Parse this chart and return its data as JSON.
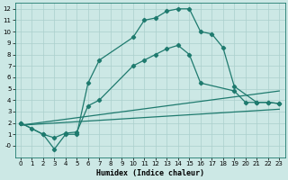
{
  "xlabel": "Humidex (Indice chaleur)",
  "background_color": "#cce8e5",
  "grid_color": "#aacfcc",
  "line_color": "#1e7a6e",
  "xlim": [
    -0.5,
    23.5
  ],
  "ylim": [
    -1.0,
    12.5
  ],
  "xticks": [
    0,
    1,
    2,
    3,
    4,
    5,
    6,
    7,
    8,
    9,
    10,
    11,
    12,
    13,
    14,
    15,
    16,
    17,
    18,
    19,
    20,
    21,
    22,
    23
  ],
  "yticks": [
    0,
    1,
    2,
    3,
    4,
    5,
    6,
    7,
    8,
    9,
    10,
    11,
    12
  ],
  "ytick_labels": [
    "-0",
    "1",
    "2",
    "3",
    "4",
    "5",
    "6",
    "7",
    "8",
    "9",
    "10",
    "11",
    "12"
  ],
  "series_marked": [
    {
      "x": [
        0,
        1,
        2,
        3,
        4,
        5,
        6,
        7,
        10,
        11,
        12,
        13,
        14,
        15,
        16,
        17,
        18,
        19,
        21,
        22,
        23
      ],
      "y": [
        2,
        1.5,
        1.0,
        -0.3,
        1.0,
        1.0,
        5.5,
        7.5,
        9.5,
        11.0,
        11.2,
        11.8,
        12.0,
        12.0,
        10.0,
        9.8,
        8.6,
        5.2,
        3.8,
        3.8,
        3.7
      ]
    },
    {
      "x": [
        0,
        2,
        3,
        4,
        5,
        6,
        7,
        10,
        11,
        12,
        13,
        14,
        15,
        16,
        19,
        20,
        21,
        22,
        23
      ],
      "y": [
        2,
        1.0,
        0.7,
        1.1,
        1.2,
        3.5,
        4.0,
        7.0,
        7.5,
        8.0,
        8.5,
        8.8,
        8.0,
        5.5,
        4.8,
        3.8,
        3.8,
        3.8,
        3.7
      ]
    }
  ],
  "series_lines": [
    {
      "x": [
        0,
        23
      ],
      "y": [
        1.8,
        4.8
      ]
    },
    {
      "x": [
        0,
        23
      ],
      "y": [
        1.8,
        3.2
      ]
    }
  ],
  "marker": "D",
  "markersize": 2.2,
  "linewidth": 0.9
}
